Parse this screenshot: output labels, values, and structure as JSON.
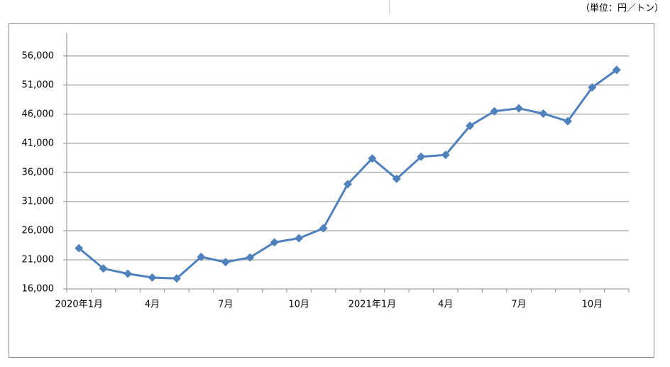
{
  "chart_data": {
    "type": "line",
    "unit_label": "（単位：円／トン）",
    "categories": [
      "2020年1月",
      null,
      null,
      "4月",
      null,
      null,
      "7月",
      null,
      null,
      "10月",
      null,
      null,
      "2021年1月",
      null,
      null,
      "4月",
      null,
      null,
      "7月",
      null,
      null,
      "10月",
      null
    ],
    "series": [
      {
        "color": "#4f81bd",
        "values": [
          23000,
          19500,
          18600,
          17950,
          17800,
          21500,
          20600,
          21400,
          24000,
          24700,
          26400,
          34000,
          38400,
          34900,
          38700,
          39000,
          44000,
          46500,
          47000,
          46100,
          44800,
          50600,
          53600
        ]
      }
    ],
    "ylim": [
      16000,
      60000
    ],
    "yticks": [
      {
        "value": 16000,
        "label": "16,000"
      },
      {
        "value": 21000,
        "label": "21,000"
      },
      {
        "value": 26000,
        "label": "26,000"
      },
      {
        "value": 31000,
        "label": "31,000"
      },
      {
        "value": 36000,
        "label": "36,000"
      },
      {
        "value": 41000,
        "label": "41,000"
      },
      {
        "value": 46000,
        "label": "46,000"
      },
      {
        "value": 51000,
        "label": "51,000"
      },
      {
        "value": 56000,
        "label": "56,000"
      }
    ],
    "grid": true
  }
}
